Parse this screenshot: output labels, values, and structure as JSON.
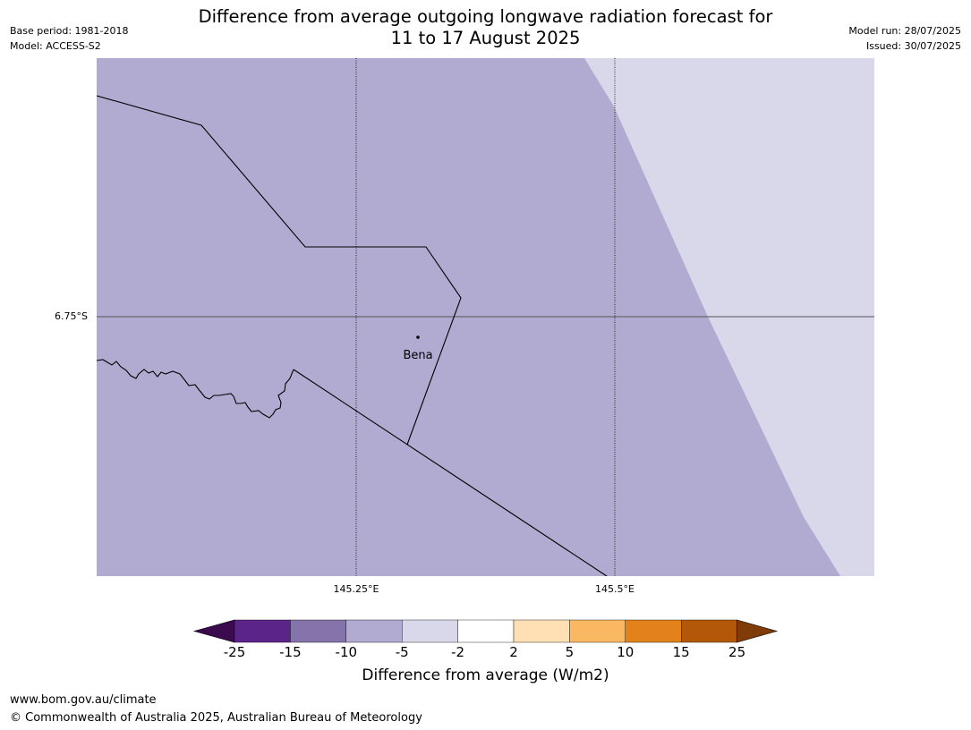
{
  "header": {
    "title_line1": "Difference from average outgoing longwave radiation forecast for",
    "title_line2": "11 to 17 August 2025",
    "base_period": "Base period: 1981-2018",
    "model": "Model: ACCESS-S2",
    "model_run": "Model run: 28/07/2025",
    "issued": "Issued: 30/07/2025"
  },
  "map": {
    "lat_label": "6.75°S",
    "lon_labels": [
      "145.25°E",
      "145.5°E"
    ],
    "place_label": "Bena",
    "fill_colors": {
      "main": "#b1abd1",
      "east": "#d8d8ea"
    }
  },
  "colorbar": {
    "ticks": [
      "-25",
      "-15",
      "-10",
      "-5",
      "-2",
      "2",
      "5",
      "10",
      "15",
      "25"
    ],
    "colors": [
      "#3c0a4f",
      "#5a2489",
      "#8474ab",
      "#b1abd1",
      "#d8d8ea",
      "#ffffff",
      "#fee0b4",
      "#fbb862",
      "#e3811a",
      "#b35709",
      "#7f3b08"
    ],
    "label": "Difference from average (W/m2)"
  },
  "footer": {
    "url": "www.bom.gov.au/climate",
    "copyright": "© Commonwealth of Australia 2025, Australian Bureau of Meteorology"
  }
}
